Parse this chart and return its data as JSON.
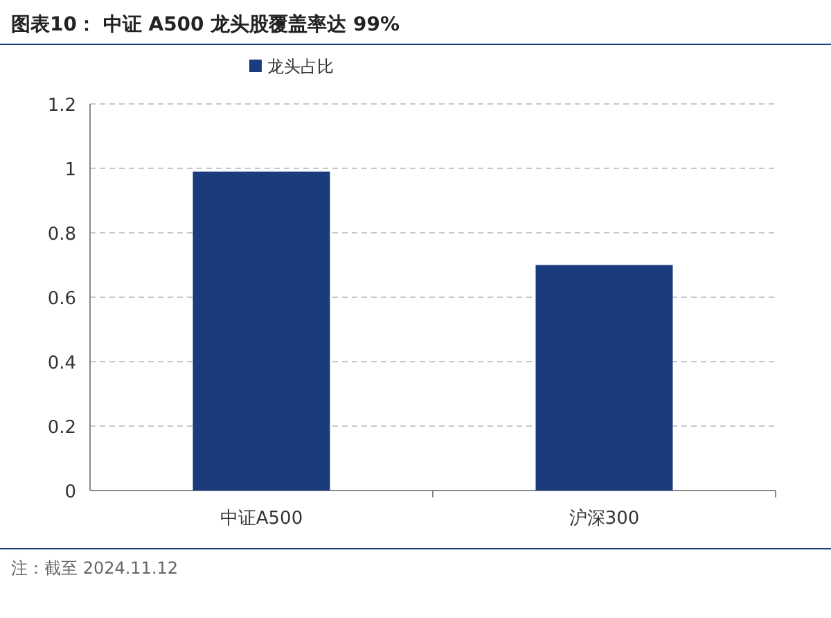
{
  "chart_data": {
    "type": "bar",
    "title": "图表10： 中证 A500 龙头股覆盖率达 99%",
    "categories": [
      "中证A500",
      "沪深300"
    ],
    "series": [
      {
        "name": "龙头占比",
        "color": "#1b3c7c",
        "values": [
          0.99,
          0.7
        ]
      }
    ],
    "ylim": [
      0,
      1.2
    ],
    "yticks": [
      0,
      0.2,
      0.4,
      0.6,
      0.8,
      1,
      1.2
    ],
    "grid": "y",
    "legend": "top",
    "annotations": [
      "注：截至 2024.11.12"
    ]
  }
}
